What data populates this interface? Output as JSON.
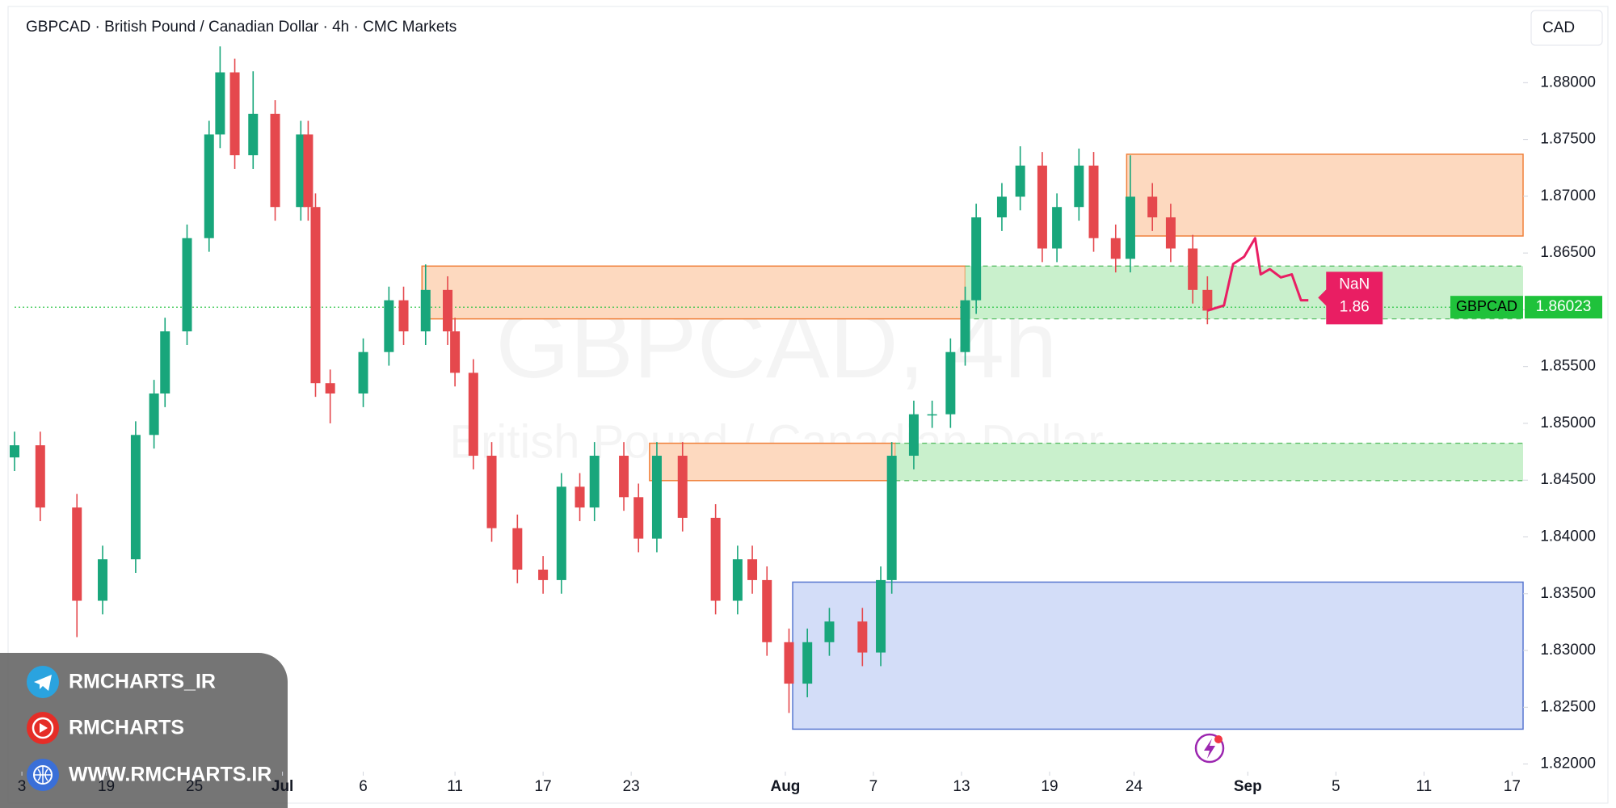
{
  "chart_data": {
    "type": "candlestick",
    "title": "GBPCAD · British Pound / Canadian Dollar · 4h · CMC Markets",
    "currency": "CAD",
    "watermark": "GBPCAD, 4h",
    "watermark_sub": "British Pound / Canadian Dollar",
    "up_color": "#18a67b",
    "down_color": "#e5484d",
    "grid": false,
    "xlim": [
      0,
      411
    ],
    "ylim": [
      1.81933,
      1.88657
    ],
    "yticks": [
      {
        "value": 1.82,
        "label": "1.82000"
      },
      {
        "value": 1.825,
        "label": "1.82500"
      },
      {
        "value": 1.83,
        "label": "1.83000"
      },
      {
        "value": 1.835,
        "label": "1.83500"
      },
      {
        "value": 1.84,
        "label": "1.84000"
      },
      {
        "value": 1.845,
        "label": "1.84500"
      },
      {
        "value": 1.85,
        "label": "1.85000"
      },
      {
        "value": 1.855,
        "label": "1.85500"
      },
      {
        "value": 1.86,
        "label": "1.86000"
      },
      {
        "value": 1.865,
        "label": "1.86500"
      },
      {
        "value": 1.87,
        "label": "1.87000"
      },
      {
        "value": 1.875,
        "label": "1.87500"
      },
      {
        "value": 1.88,
        "label": "1.88000"
      }
    ],
    "xticks": [
      {
        "value": 2,
        "label": "3"
      },
      {
        "value": 25,
        "label": "19"
      },
      {
        "value": 49,
        "label": "25"
      },
      {
        "value": 73,
        "label": "Jul"
      },
      {
        "value": 95,
        "label": "6"
      },
      {
        "value": 120,
        "label": "11"
      },
      {
        "value": 144,
        "label": "17"
      },
      {
        "value": 168,
        "label": "23"
      },
      {
        "value": 210,
        "label": "Aug"
      },
      {
        "value": 234,
        "label": "7"
      },
      {
        "value": 258,
        "label": "13"
      },
      {
        "value": 282,
        "label": "19"
      },
      {
        "value": 305,
        "label": "24"
      },
      {
        "value": 336,
        "label": "Sep"
      },
      {
        "value": 360,
        "label": "5"
      },
      {
        "value": 384,
        "label": "11"
      },
      {
        "value": 408,
        "label": "17"
      }
    ],
    "x": [
      0,
      7,
      17,
      24,
      33,
      38,
      41,
      47,
      53,
      56,
      60,
      65,
      71,
      78,
      80,
      82,
      86,
      95,
      102,
      106,
      112,
      118,
      120,
      125,
      130,
      137,
      144,
      149,
      154,
      158,
      166,
      170,
      175,
      182,
      191,
      197,
      201,
      205,
      211,
      216,
      222,
      231,
      236,
      239,
      245,
      250,
      255,
      259,
      262,
      269,
      274,
      280,
      284,
      290,
      294,
      300,
      304,
      310,
      315,
      321,
      325
    ],
    "open": [
      1.847,
      1.84807,
      1.84259,
      1.83438,
      1.83803,
      1.84898,
      1.85263,
      1.8581,
      1.86631,
      1.87544,
      1.88091,
      1.87361,
      1.87726,
      1.86905,
      1.87544,
      1.86905,
      1.85354,
      1.85263,
      1.85628,
      1.86084,
      1.8581,
      1.86175,
      1.8581,
      1.85445,
      1.84715,
      1.84077,
      1.83712,
      1.8362,
      1.84442,
      1.84259,
      1.84715,
      1.8435,
      1.83985,
      1.84715,
      1.84168,
      1.83438,
      1.83803,
      1.8362,
      1.83073,
      1.82708,
      1.83073,
      1.83255,
      1.82982,
      1.8362,
      1.84715,
      1.8508,
      1.8508,
      1.85628,
      1.86084,
      1.86814,
      1.86996,
      1.8727,
      1.8654,
      1.86905,
      1.8727,
      1.86631,
      1.86449,
      1.86996,
      1.86814,
      1.8654,
      1.86175
    ],
    "high": [
      1.84927,
      1.84927,
      1.84379,
      1.83923,
      1.85018,
      1.85383,
      1.8593,
      1.86751,
      1.87664,
      1.8832,
      1.88211,
      1.881,
      1.87846,
      1.87664,
      1.87664,
      1.87025,
      1.85474,
      1.85748,
      1.86204,
      1.86204,
      1.864,
      1.86295,
      1.8593,
      1.85565,
      1.84835,
      1.84197,
      1.83832,
      1.84562,
      1.84562,
      1.84835,
      1.84835,
      1.8447,
      1.84835,
      1.84835,
      1.84288,
      1.83923,
      1.83923,
      1.8374,
      1.83193,
      1.83193,
      1.83375,
      1.83375,
      1.8374,
      1.84835,
      1.852,
      1.852,
      1.85748,
      1.86204,
      1.86934,
      1.87116,
      1.8744,
      1.8739,
      1.87025,
      1.8742,
      1.8739,
      1.86751,
      1.8736,
      1.87116,
      1.86934,
      1.8666,
      1.86295
    ],
    "low": [
      1.8458,
      1.84139,
      1.83118,
      1.83318,
      1.83683,
      1.84778,
      1.85143,
      1.8569,
      1.86511,
      1.87424,
      1.87241,
      1.87241,
      1.86785,
      1.86785,
      1.86785,
      1.85234,
      1.85,
      1.85143,
      1.85508,
      1.8569,
      1.8569,
      1.8569,
      1.85325,
      1.84595,
      1.83957,
      1.83592,
      1.835,
      1.835,
      1.84139,
      1.84139,
      1.8423,
      1.83865,
      1.83865,
      1.84048,
      1.83318,
      1.83318,
      1.835,
      1.82953,
      1.8245,
      1.82588,
      1.82953,
      1.82862,
      1.82862,
      1.835,
      1.84595,
      1.8496,
      1.8496,
      1.85508,
      1.85964,
      1.86694,
      1.86876,
      1.8642,
      1.8642,
      1.86785,
      1.86511,
      1.86329,
      1.86329,
      1.86694,
      1.8642,
      1.86055,
      1.85873
    ],
    "close": [
      1.84807,
      1.84259,
      1.83438,
      1.83803,
      1.84898,
      1.85263,
      1.8581,
      1.86631,
      1.87544,
      1.88091,
      1.87361,
      1.87726,
      1.86905,
      1.87544,
      1.86905,
      1.85354,
      1.85263,
      1.85628,
      1.86084,
      1.8581,
      1.86175,
      1.8581,
      1.85445,
      1.84715,
      1.84077,
      1.83712,
      1.8362,
      1.84442,
      1.84259,
      1.84715,
      1.8435,
      1.83985,
      1.84715,
      1.84168,
      1.83438,
      1.83803,
      1.8362,
      1.83073,
      1.82708,
      1.83073,
      1.83255,
      1.82982,
      1.8362,
      1.84715,
      1.8508,
      1.8508,
      1.85628,
      1.86084,
      1.86814,
      1.86996,
      1.8727,
      1.8654,
      1.86905,
      1.8727,
      1.86631,
      1.86449,
      1.86996,
      1.86814,
      1.8654,
      1.86175,
      1.85993
    ],
    "zones": [
      {
        "x0": 303,
        "x1": 411,
        "y0": 1.8665,
        "y1": 1.8737,
        "fill": "#fdd9bf",
        "stroke": "#f0803a",
        "border": "solid"
      },
      {
        "x0": 111,
        "x1": 259,
        "y0": 1.8592,
        "y1": 1.86385,
        "fill": "#fdd9bf",
        "stroke": "#f0803a",
        "border": "solid"
      },
      {
        "x0": 259,
        "x1": 411,
        "y0": 1.8592,
        "y1": 1.86385,
        "fill": "#c9f0cc",
        "stroke": "#5cbf68",
        "border": "dashed"
      },
      {
        "x0": 173,
        "x1": 240,
        "y0": 1.84496,
        "y1": 1.84825,
        "fill": "#fdd9bf",
        "stroke": "#f0803a",
        "border": "solid"
      },
      {
        "x0": 240,
        "x1": 411,
        "y0": 1.84496,
        "y1": 1.84825,
        "fill": "#c9f0cc",
        "stroke": "#5cbf68",
        "border": "dashed"
      },
      {
        "x0": 212,
        "x1": 411,
        "y0": 1.82307,
        "y1": 1.83602,
        "fill": "#d3ddf8",
        "stroke": "#5877d0",
        "border": "solid"
      }
    ],
    "last_price": 1.86023,
    "symbol_label": "GBPCAD",
    "price_color": "#1fc23b",
    "projection": {
      "name": "NaN",
      "label_value": 1.86,
      "color": "#e91e63",
      "x": [
        325,
        329.5,
        332,
        335,
        338,
        339.5,
        342,
        345,
        348,
        350.5,
        352.5
      ],
      "values": [
        1.85993,
        1.86038,
        1.86403,
        1.86467,
        1.86631,
        1.86312,
        1.86358,
        1.86285,
        1.86312,
        1.86084,
        1.86084
      ]
    }
  },
  "overlay": {
    "links": [
      "RMCHARTS_IR",
      "RMCHARTS",
      "WWW.RMCHARTS.IR"
    ]
  }
}
